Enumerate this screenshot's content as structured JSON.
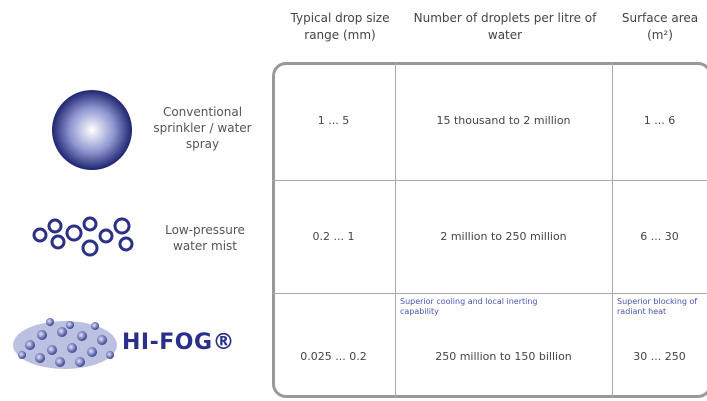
{
  "header": {
    "columns": [
      "Typical drop size range (mm)",
      "Number of droplets per litre of water",
      "Surface area (m²)"
    ]
  },
  "rows": [
    {
      "label": "Conventional sprinkler / water spray",
      "cells": [
        "1 ... 5",
        "15 thousand to 2 million",
        "1 ... 6"
      ]
    },
    {
      "label": "Low-pressure water mist",
      "cells": [
        "0.2 ... 1",
        "2 million to 250 million",
        "6 ... 30"
      ]
    },
    {
      "label": "HI-FOG®",
      "cells": [
        "0.025 ... 0.2",
        "250 million to 150 billion",
        "30 ... 250"
      ],
      "notes": [
        "Superior cooling and local inerting capability",
        "Superior blocking of radiant heat"
      ]
    }
  ]
}
